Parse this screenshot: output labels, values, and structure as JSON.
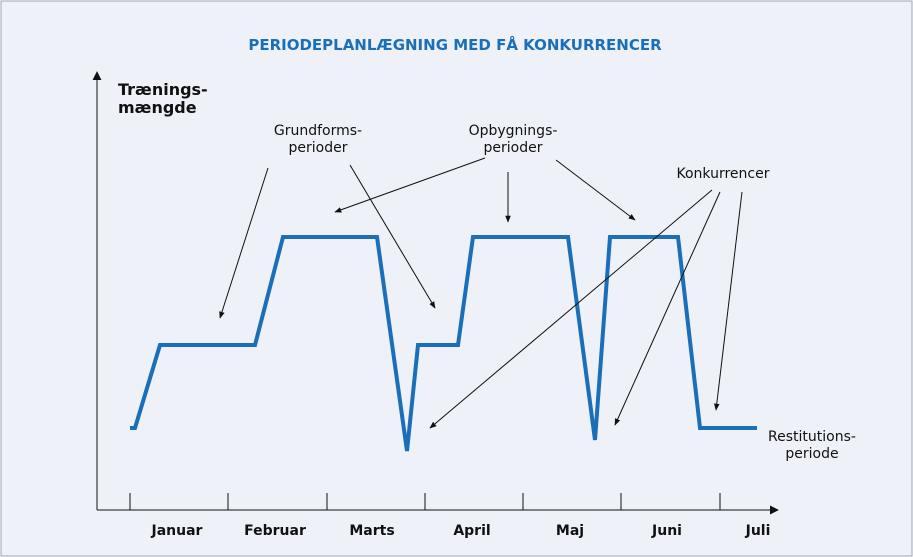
{
  "title": "PERIODEPLANLÆGNING MED FÅ KONKURRENCER",
  "y_axis_label": [
    "Trænings-",
    "mængde"
  ],
  "months": [
    "Januar",
    "Februar",
    "Marts",
    "April",
    "Maj",
    "Juni",
    "Juli"
  ],
  "annotations": {
    "grundform": [
      "Grundforms-",
      "perioder"
    ],
    "opbygning": [
      "Opbygnings-",
      "perioder"
    ],
    "konkurrencer": [
      "Konkurrencer"
    ],
    "restitution": [
      "Restitutions-",
      "periode"
    ]
  }
}
